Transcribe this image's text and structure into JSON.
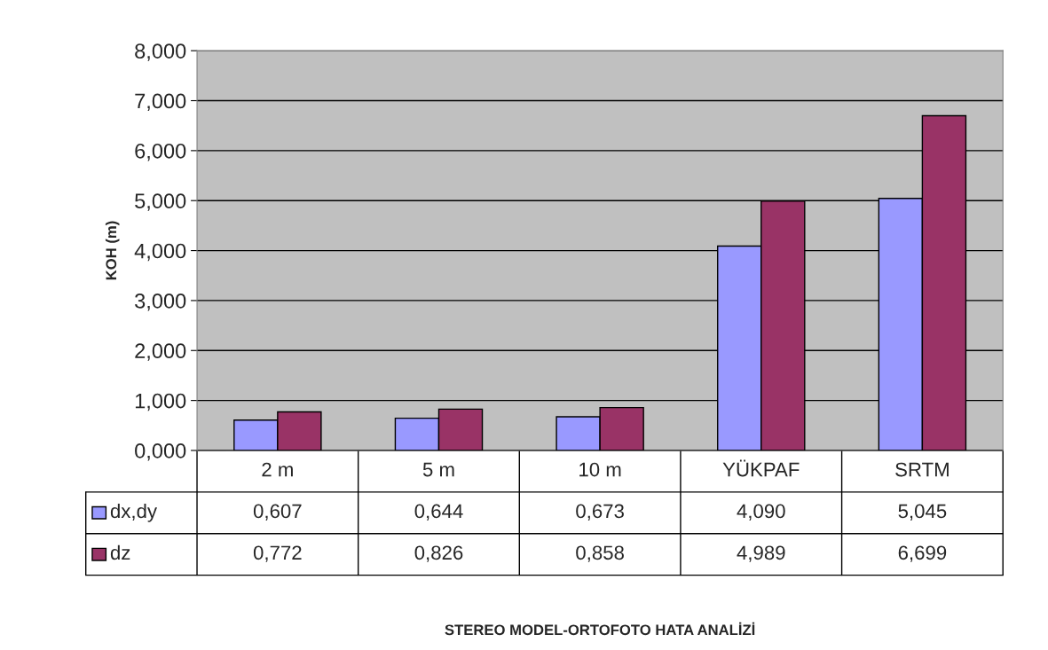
{
  "chart_data": {
    "type": "bar",
    "annotations": [
      "STEREO MODEL-ORTOFOTO HATA ANALİZİ"
    ],
    "ylabel": "KOH (m)",
    "categories": [
      "2 m",
      "5 m",
      "10 m",
      "YÜKPAF",
      "SRTM"
    ],
    "series": [
      {
        "name": "dx,dy",
        "color": "#9999ff",
        "values": [
          0.607,
          0.644,
          0.673,
          4.09,
          5.045
        ],
        "value_labels": [
          "0,607",
          "0,644",
          "0,673",
          "4,090",
          "5,045"
        ]
      },
      {
        "name": "dz",
        "color": "#993366",
        "values": [
          0.772,
          0.826,
          0.858,
          4.989,
          6.699
        ],
        "value_labels": [
          "0,772",
          "0,826",
          "0,858",
          "4,989",
          "6,699"
        ]
      }
    ],
    "ylim": [
      0,
      8
    ],
    "yticks": [
      {
        "value": 0,
        "label": "0,000"
      },
      {
        "value": 1,
        "label": "1,000"
      },
      {
        "value": 2,
        "label": "2,000"
      },
      {
        "value": 3,
        "label": "3,000"
      },
      {
        "value": 4,
        "label": "4,000"
      },
      {
        "value": 5,
        "label": "5,000"
      },
      {
        "value": 6,
        "label": "6,000"
      },
      {
        "value": 7,
        "label": "7,000"
      },
      {
        "value": 8,
        "label": "8,000"
      }
    ],
    "grid": "y",
    "legend": "bottom"
  }
}
